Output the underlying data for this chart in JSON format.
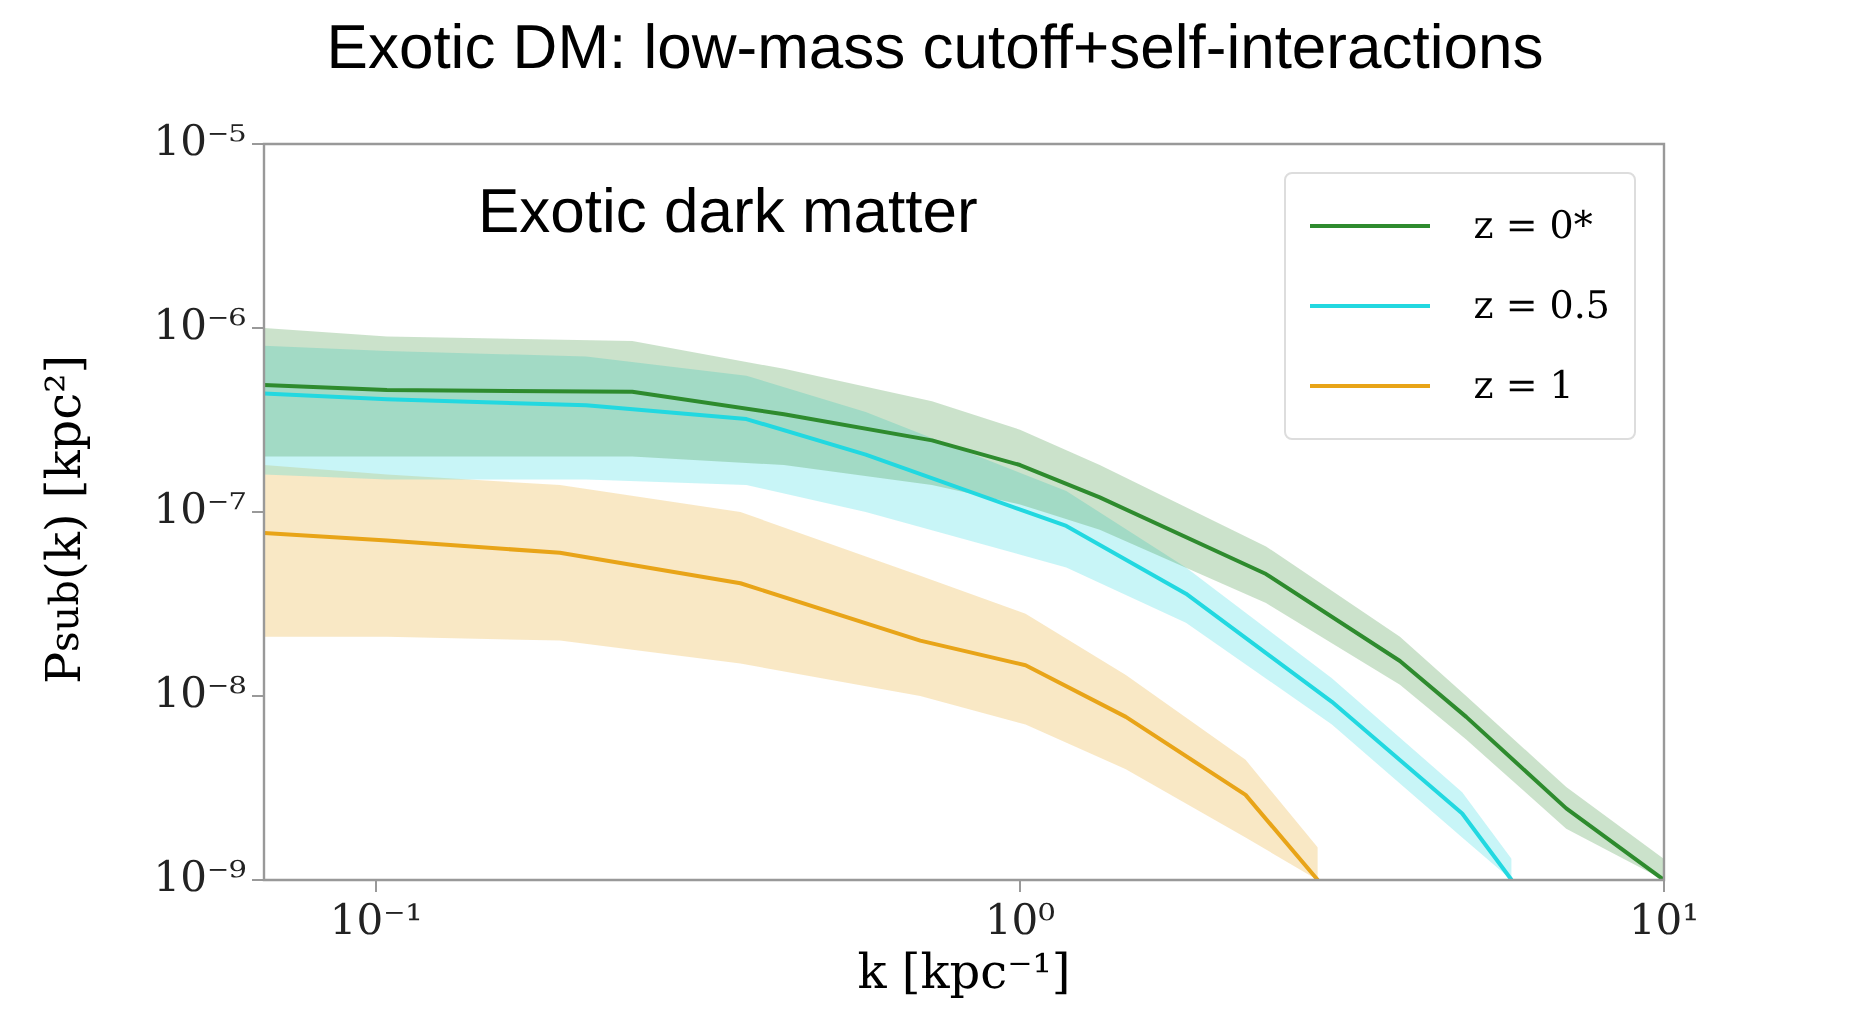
{
  "chart_data": {
    "type": "line",
    "title": "Exotic DM: low-mass cutoff+self-interactions",
    "xlabel": "k [kpc⁻¹]",
    "ylabel": "P$_{sub}$(k) [kpc²]",
    "annotations": [
      "Exotic dark matter"
    ],
    "log": "xy",
    "grid": false,
    "legend": "top right",
    "marker": "none",
    "line_style": "solid",
    "xlim": [
      0.067,
      10
    ],
    "ylim": [
      1e-09,
      1e-05
    ],
    "xticks": [
      {
        "value": 0.1,
        "label": "10⁻¹"
      },
      {
        "value": 1,
        "label": "10⁰"
      },
      {
        "value": 10,
        "label": "10¹"
      }
    ],
    "yticks": [
      {
        "value": 1e-09,
        "label": "10⁻⁹"
      },
      {
        "value": 1e-08,
        "label": "10⁻⁸"
      },
      {
        "value": 1e-07,
        "label": "10⁻⁷"
      },
      {
        "value": 1e-06,
        "label": "10⁻⁶"
      },
      {
        "value": 1e-05,
        "label": "10⁻⁵"
      }
    ],
    "series": [
      {
        "name": "z = 0*",
        "color": "#2e8b2e",
        "x": [
          0.067,
          0.104,
          0.25,
          0.43,
          0.73,
          1,
          1.33,
          2.41,
          3.89,
          4.93,
          7.05,
          10
        ],
        "values": [
          4.9e-07,
          4.6e-07,
          4.5e-07,
          3.4e-07,
          2.45e-07,
          1.8e-07,
          1.2e-07,
          4.6e-08,
          1.55e-08,
          7.7e-09,
          2.45e-09,
          1e-09
        ],
        "upper": [
          1e-06,
          9e-07,
          8.5e-07,
          6e-07,
          4e-07,
          2.8e-07,
          1.8e-07,
          6.5e-08,
          2.1e-08,
          1e-08,
          3.2e-09,
          1.3e-09
        ],
        "lower": [
          2e-07,
          2e-07,
          2e-07,
          1.8e-07,
          1.4e-07,
          1.1e-07,
          8e-08,
          3.2e-08,
          1.15e-08,
          5.8e-09,
          1.9e-09,
          1e-09
        ]
      },
      {
        "name": "z = 0.5",
        "color": "#22d8e0",
        "x": [
          0.067,
          0.104,
          0.212,
          0.376,
          0.576,
          1.18,
          1.81,
          3.05,
          4.86,
          5.8
        ],
        "values": [
          4.4e-07,
          4.1e-07,
          3.8e-07,
          3.2e-07,
          2.05e-07,
          8.4e-08,
          3.6e-08,
          9.3e-09,
          2.3e-09,
          1e-09
        ],
        "upper": [
          8e-07,
          7.5e-07,
          7e-07,
          5.5e-07,
          3.5e-07,
          1.3e-07,
          5e-08,
          1.25e-08,
          3e-09,
          1.3e-09
        ],
        "lower": [
          1.6e-07,
          1.5e-07,
          1.5e-07,
          1.4e-07,
          1e-07,
          5e-08,
          2.5e-08,
          7e-09,
          1.7e-09,
          1e-09
        ]
      },
      {
        "name": "z = 1",
        "color": "#e8a418",
        "x": [
          0.067,
          0.104,
          0.193,
          0.368,
          0.7,
          1.02,
          1.46,
          2.24,
          2.9
        ],
        "values": [
          7.7e-08,
          7e-08,
          6e-08,
          4.1e-08,
          2e-08,
          1.47e-08,
          7.7e-09,
          2.9e-09,
          1e-09
        ],
        "upper": [
          1.8e-07,
          1.6e-07,
          1.4e-07,
          1e-07,
          4.5e-08,
          2.8e-08,
          1.3e-08,
          4.5e-09,
          1.5e-09
        ],
        "lower": [
          2.1e-08,
          2.1e-08,
          2e-08,
          1.5e-08,
          1e-08,
          7e-09,
          4e-09,
          1.7e-09,
          1e-09
        ]
      }
    ]
  }
}
